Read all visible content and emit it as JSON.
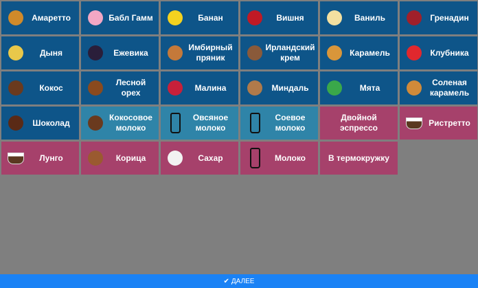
{
  "colors": {
    "syrup": "#0e5589",
    "milk": "#2f84a8",
    "coffee": "#a6416b",
    "background": "#7f7f7f",
    "footer": "#1a82f5"
  },
  "items": [
    {
      "label": "Амаретто",
      "type": "syrup",
      "icon": "amaretto-bottle-icon",
      "color": "#d08a2a"
    },
    {
      "label": "Бабл Гамм",
      "type": "syrup",
      "icon": "bubble-gum-icon",
      "color": "#f2a7c4"
    },
    {
      "label": "Банан",
      "type": "syrup",
      "icon": "banana-icon",
      "color": "#f4d21f"
    },
    {
      "label": "Вишня",
      "type": "syrup",
      "icon": "cherry-icon",
      "color": "#c01a25"
    },
    {
      "label": "Ваниль",
      "type": "syrup",
      "icon": "vanilla-flower-icon",
      "color": "#f3e0a0"
    },
    {
      "label": "Гренадин",
      "type": "syrup",
      "icon": "pomegranate-icon",
      "color": "#a0202a"
    },
    {
      "label": "Дыня",
      "type": "syrup",
      "icon": "melon-icon",
      "color": "#e9c84a"
    },
    {
      "label": "Ежевика",
      "type": "syrup",
      "icon": "blackberry-icon",
      "color": "#2a1e3a"
    },
    {
      "label": "Имбирный пряник",
      "type": "syrup",
      "icon": "gingerbread-icon",
      "color": "#c4793a"
    },
    {
      "label": "Ирландский крем",
      "type": "syrup",
      "icon": "irish-cream-glass-icon",
      "color": "#8a5a3a"
    },
    {
      "label": "Карамель",
      "type": "syrup",
      "icon": "caramel-icon",
      "color": "#d9963a"
    },
    {
      "label": "Клубника",
      "type": "syrup",
      "icon": "strawberry-icon",
      "color": "#e0282e"
    },
    {
      "label": "Кокос",
      "type": "syrup",
      "icon": "coconut-icon",
      "color": "#6a3a1e"
    },
    {
      "label": "Лесной орех",
      "type": "syrup",
      "icon": "hazelnut-icon",
      "color": "#8a4a1e"
    },
    {
      "label": "Малина",
      "type": "syrup",
      "icon": "raspberry-icon",
      "color": "#c8203a"
    },
    {
      "label": "Миндаль",
      "type": "syrup",
      "icon": "almond-icon",
      "color": "#b07a4a"
    },
    {
      "label": "Мята",
      "type": "syrup",
      "icon": "mint-leaf-icon",
      "color": "#3aa84a"
    },
    {
      "label": "Соленая карамель",
      "type": "syrup",
      "icon": "salted-caramel-icon",
      "color": "#d08a3a"
    },
    {
      "label": "Шоколад",
      "type": "syrup",
      "icon": "chocolate-icon",
      "color": "#5a2a16"
    },
    {
      "label": "Кокосовое молоко",
      "type": "milk",
      "icon": "coconut-icon",
      "color": "#6a3a1e"
    },
    {
      "label": "Овсяное молоко",
      "type": "milk",
      "icon": "milk-bottle-icon",
      "color": ""
    },
    {
      "label": "Соевое молоко",
      "type": "milk",
      "icon": "milk-bottle-icon",
      "color": ""
    },
    {
      "label": "Двойной эспрессо",
      "type": "coffee",
      "icon": "",
      "color": ""
    },
    {
      "label": "Ристретто",
      "type": "coffee",
      "icon": "coffee-cup-icon",
      "color": ""
    },
    {
      "label": "Лунго",
      "type": "coffee",
      "icon": "coffee-cup-icon",
      "color": ""
    },
    {
      "label": "Корица",
      "type": "coffee",
      "icon": "cinnamon-icon",
      "color": "#9a5a30"
    },
    {
      "label": "Сахар",
      "type": "coffee",
      "icon": "sugar-cubes-icon",
      "color": "#f2f2f2"
    },
    {
      "label": "Молоко",
      "type": "coffee",
      "icon": "milk-bottle-icon",
      "color": ""
    },
    {
      "label": "В термокружку",
      "type": "coffee",
      "icon": "",
      "color": ""
    }
  ],
  "footer": {
    "icon": "checkmark-icon",
    "check": "✔",
    "label": "ДАЛЕЕ"
  }
}
